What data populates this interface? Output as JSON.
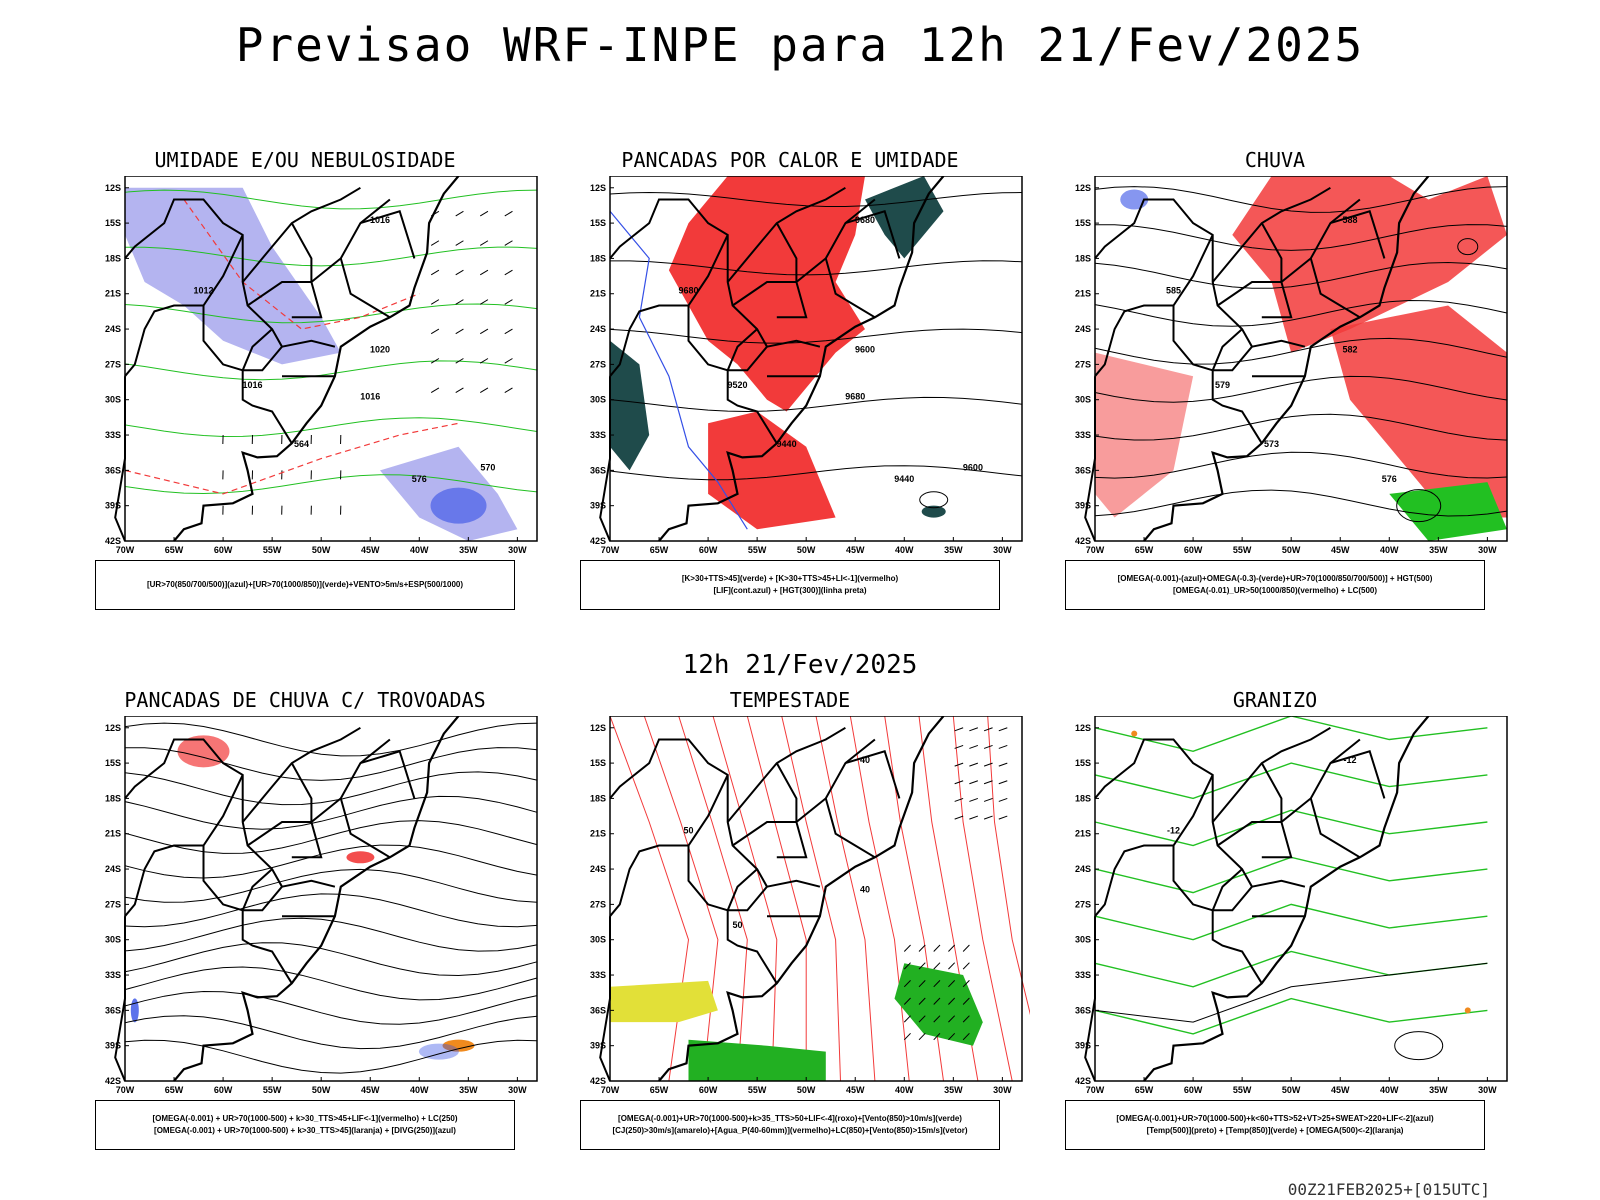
{
  "title": "Previsao WRF-INPE  para 12h 21/Fev/2025",
  "mid_title": "12h 21/Fev/2025",
  "footer": "00Z21FEB2025+[015UTC]",
  "lat_labels": [
    "12S",
    "15S",
    "18S",
    "21S",
    "24S",
    "27S",
    "30S",
    "33S",
    "36S",
    "39S",
    "42S"
  ],
  "lon_labels": [
    "70W",
    "65W",
    "60W",
    "55W",
    "50W",
    "45W",
    "40W",
    "35W",
    "30W"
  ],
  "panels": [
    {
      "title": "UMIDADE E/OU NEBULOSIDADE",
      "legend": [
        "[UR>70(850/700/500)](azul)+[UR>70(1000/850)](verde)+VENTO>5m/s+ESP(500/1000)"
      ],
      "contour_labels": [
        "1016",
        "1012",
        "1020",
        "1016",
        "576",
        "564",
        "570",
        "1016"
      ]
    },
    {
      "title": "PANCADAS POR CALOR E UMIDADE",
      "legend": [
        "[K>30+TTS>45](verde) + [K>30+TTS>45+LI<-1](vermelho)",
        "[LIF](cont.azul) + [HGT(300)](linha preta)"
      ],
      "contour_labels": [
        "9680",
        "9680",
        "9600",
        "9520",
        "9440",
        "9440",
        "9600",
        "9680"
      ]
    },
    {
      "title": "CHUVA",
      "legend": [
        "[OMEGA(-0.001)-(azul)+OMEGA(-0.3)-(verde)+UR>70(1000/850/700/500)] + HGT(500)",
        "[OMEGA(-0.01)_UR>50(1000/850)(vermelho) + LC(500)"
      ],
      "contour_labels": [
        "588",
        "585",
        "582",
        "579",
        "576",
        "573"
      ]
    },
    {
      "title": "PANCADAS DE CHUVA C/ TROVOADAS",
      "legend": [
        "[OMEGA(-0.001) + UR>70(1000-500) + k>30_TTS>45+LIF<-1](vermelho) + LC(250)",
        "[OMEGA(-0.001) + UR>70(1000-500) + k>30_TTS>45](laranja) + [DIVG(250)](azul)"
      ],
      "contour_labels": []
    },
    {
      "title": "TEMPESTADE",
      "legend": [
        "[OMEGA(-0.001)+UR>70(1000-500)+k>35_TTS>50+LIF<-4](roxo)+[Vento(850)>10m/s](verde)",
        "[CJ(250)>30m/s](amarelo)+[Agua_P(40-60mm)](vermelho)+LC(850)+[Vento(850)>15m/s](vetor)"
      ],
      "contour_labels": [
        "40",
        "50",
        "40",
        "50"
      ]
    },
    {
      "title": "GRANIZO",
      "legend": [
        "[OMEGA(-0.001)+UR>70(1000-500)+k<60+TTS>52+VT>25+SWEAT>220+LIF<-2](azul)",
        "[Temp(500)](preto) + [Temp(850)](verde) + [OMEGA(500)<-2](laranja)"
      ],
      "contour_labels": [
        "-12",
        "-12"
      ]
    }
  ],
  "colors": {
    "humid_upper": "#b4b4f0",
    "humid_low": "#22c022",
    "red_field": "#f23a3a",
    "dark_green": "#1f4b4b",
    "blue": "#3550e6",
    "orange": "#f08a1e",
    "yellow": "#e2e038",
    "green_fill": "#22b022"
  }
}
